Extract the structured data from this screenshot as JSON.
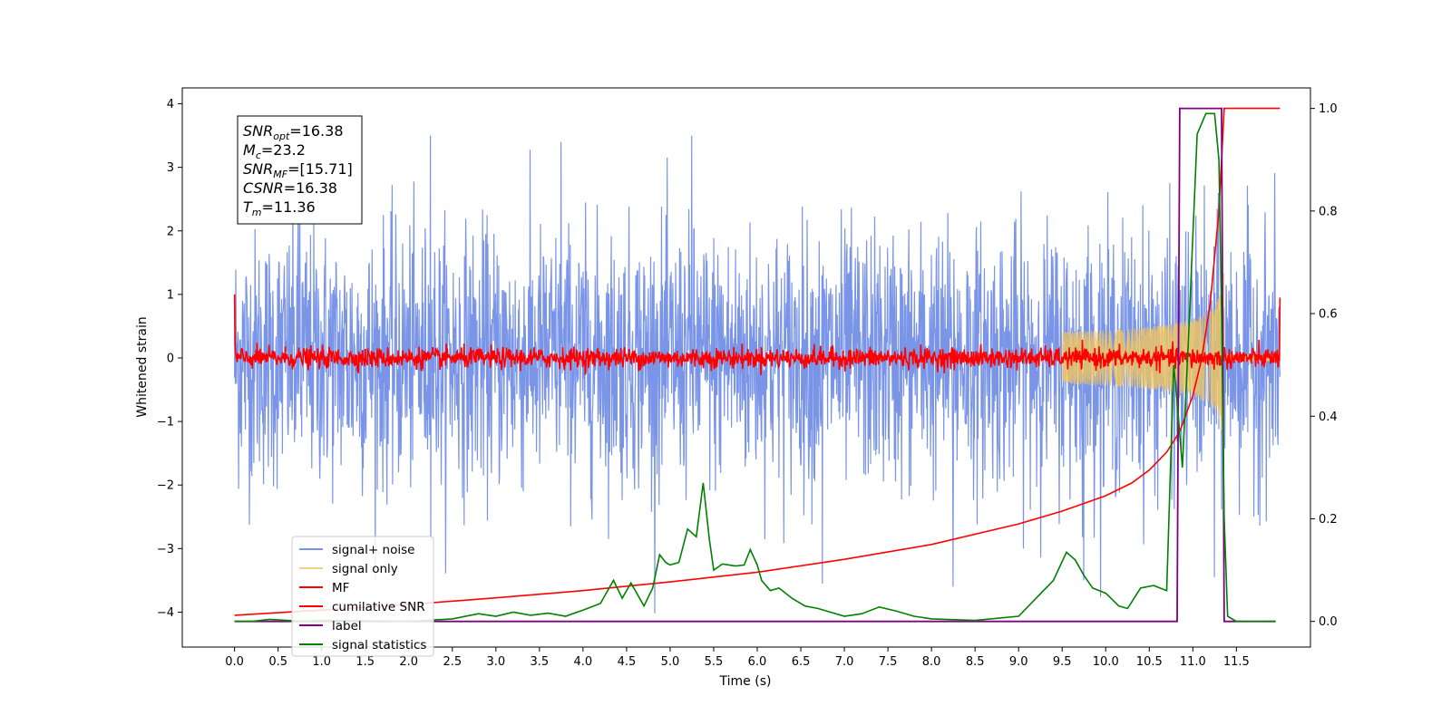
{
  "chart_data": {
    "type": "line",
    "title": "",
    "xlabel": "Time (s)",
    "ylabel": "Whitened strain",
    "ylabel_right": "",
    "xlim": [
      -0.6,
      12.35
    ],
    "ylim": [
      -4.55,
      4.25
    ],
    "ylim_right": [
      -0.05,
      1.04
    ],
    "x_ticks": [
      "0.0",
      "0.5",
      "1.0",
      "1.5",
      "2.0",
      "2.5",
      "3.0",
      "3.5",
      "4.0",
      "4.5",
      "5.0",
      "5.5",
      "6.0",
      "6.5",
      "7.0",
      "7.5",
      "8.0",
      "8.5",
      "9.0",
      "9.5",
      "10.0",
      "10.5",
      "11.0",
      "11.5"
    ],
    "y_ticks_left": [
      "4",
      "3",
      "2",
      "1",
      "0",
      "−1",
      "−2",
      "−3",
      "−4"
    ],
    "y_ticks_right": [
      "1.0",
      "0.8",
      "0.6",
      "0.4",
      "0.2",
      "0.0"
    ],
    "grid": false,
    "legend_position": "lower-left",
    "annotation": [
      {
        "main": "SNR",
        "sub": "opt",
        "rest": "=16.38"
      },
      {
        "main": "M",
        "sub": "c",
        "rest": "=23.2"
      },
      {
        "main": "SNR",
        "sub": "MF",
        "rest": "=[15.71]"
      },
      {
        "main": "CSNR",
        "sub": "",
        "rest": "=16.38"
      },
      {
        "main": "T",
        "sub": "m",
        "rest": "=11.36"
      }
    ],
    "series": [
      {
        "name": "signal+ noise",
        "color": "#7a95e8",
        "axis": "left",
        "style": "noise",
        "x_range": [
          0.0,
          12.0
        ],
        "amplitude_typical": 1.0,
        "peak_values": [
          3.6,
          3.5,
          3.4,
          3.5,
          -3.55,
          -3.6,
          -3.5,
          -3.45
        ]
      },
      {
        "name": "signal only",
        "color": "#f2c65c",
        "axis": "left",
        "style": "chirp",
        "x_range": [
          9.5,
          12.0
        ],
        "max_amplitude": 1.5
      },
      {
        "name": "MF",
        "color": "#ff0000",
        "axis": "left",
        "style": "noise-small",
        "x_range": [
          0.0,
          12.0
        ],
        "amplitude_typical": 0.08,
        "start_value": 1.0,
        "end_value": 0.95
      },
      {
        "name": "cumilative SNR",
        "color": "#ff0000",
        "axis": "right",
        "points": [
          [
            0.0,
            0.012
          ],
          [
            1.0,
            0.022
          ],
          [
            2.0,
            0.033
          ],
          [
            3.0,
            0.046
          ],
          [
            4.0,
            0.06
          ],
          [
            5.0,
            0.077
          ],
          [
            6.0,
            0.096
          ],
          [
            7.0,
            0.121
          ],
          [
            8.0,
            0.15
          ],
          [
            9.0,
            0.19
          ],
          [
            9.5,
            0.215
          ],
          [
            10.0,
            0.245
          ],
          [
            10.3,
            0.27
          ],
          [
            10.5,
            0.295
          ],
          [
            10.7,
            0.33
          ],
          [
            10.85,
            0.37
          ],
          [
            11.0,
            0.44
          ],
          [
            11.1,
            0.51
          ],
          [
            11.2,
            0.62
          ],
          [
            11.3,
            0.8
          ],
          [
            11.36,
            1.0
          ],
          [
            12.0,
            1.0
          ]
        ]
      },
      {
        "name": "label",
        "color": "#800080",
        "axis": "right",
        "points": [
          [
            0.0,
            0.0
          ],
          [
            10.82,
            0.0
          ],
          [
            10.85,
            1.0
          ],
          [
            11.33,
            1.0
          ],
          [
            11.36,
            0.0
          ],
          [
            11.95,
            0.0
          ]
        ]
      },
      {
        "name": "signal statistics",
        "color": "#008000",
        "axis": "right",
        "points": [
          [
            0.0,
            0.0
          ],
          [
            0.2,
            0.0
          ],
          [
            0.4,
            0.004
          ],
          [
            0.6,
            0.002
          ],
          [
            0.8,
            0.0
          ],
          [
            1.0,
            0.002
          ],
          [
            1.5,
            0.001
          ],
          [
            2.0,
            0.0
          ],
          [
            2.5,
            0.005
          ],
          [
            2.8,
            0.015
          ],
          [
            3.0,
            0.01
          ],
          [
            3.2,
            0.018
          ],
          [
            3.4,
            0.012
          ],
          [
            3.6,
            0.016
          ],
          [
            3.8,
            0.01
          ],
          [
            4.0,
            0.022
          ],
          [
            4.2,
            0.035
          ],
          [
            4.35,
            0.08
          ],
          [
            4.45,
            0.045
          ],
          [
            4.55,
            0.075
          ],
          [
            4.7,
            0.03
          ],
          [
            4.8,
            0.065
          ],
          [
            4.88,
            0.13
          ],
          [
            4.95,
            0.115
          ],
          [
            5.0,
            0.11
          ],
          [
            5.1,
            0.115
          ],
          [
            5.2,
            0.18
          ],
          [
            5.3,
            0.165
          ],
          [
            5.38,
            0.27
          ],
          [
            5.45,
            0.16
          ],
          [
            5.5,
            0.1
          ],
          [
            5.6,
            0.112
          ],
          [
            5.75,
            0.108
          ],
          [
            5.85,
            0.11
          ],
          [
            5.92,
            0.14
          ],
          [
            6.0,
            0.11
          ],
          [
            6.05,
            0.08
          ],
          [
            6.15,
            0.06
          ],
          [
            6.25,
            0.065
          ],
          [
            6.4,
            0.045
          ],
          [
            6.55,
            0.03
          ],
          [
            6.7,
            0.025
          ],
          [
            6.8,
            0.02
          ],
          [
            7.0,
            0.01
          ],
          [
            7.2,
            0.015
          ],
          [
            7.4,
            0.028
          ],
          [
            7.6,
            0.02
          ],
          [
            7.8,
            0.01
          ],
          [
            8.0,
            0.005
          ],
          [
            8.5,
            0.002
          ],
          [
            9.0,
            0.01
          ],
          [
            9.2,
            0.045
          ],
          [
            9.4,
            0.08
          ],
          [
            9.55,
            0.135
          ],
          [
            9.65,
            0.12
          ],
          [
            9.75,
            0.09
          ],
          [
            9.85,
            0.065
          ],
          [
            10.0,
            0.055
          ],
          [
            10.15,
            0.03
          ],
          [
            10.25,
            0.025
          ],
          [
            10.4,
            0.065
          ],
          [
            10.55,
            0.07
          ],
          [
            10.7,
            0.06
          ],
          [
            10.78,
            0.5
          ],
          [
            10.82,
            0.43
          ],
          [
            10.88,
            0.3
          ],
          [
            10.95,
            0.55
          ],
          [
            11.05,
            0.95
          ],
          [
            11.15,
            0.99
          ],
          [
            11.25,
            0.99
          ],
          [
            11.3,
            0.9
          ],
          [
            11.33,
            0.6
          ],
          [
            11.36,
            0.2
          ],
          [
            11.4,
            0.01
          ],
          [
            11.5,
            0.0
          ],
          [
            11.95,
            0.0
          ]
        ]
      }
    ]
  }
}
